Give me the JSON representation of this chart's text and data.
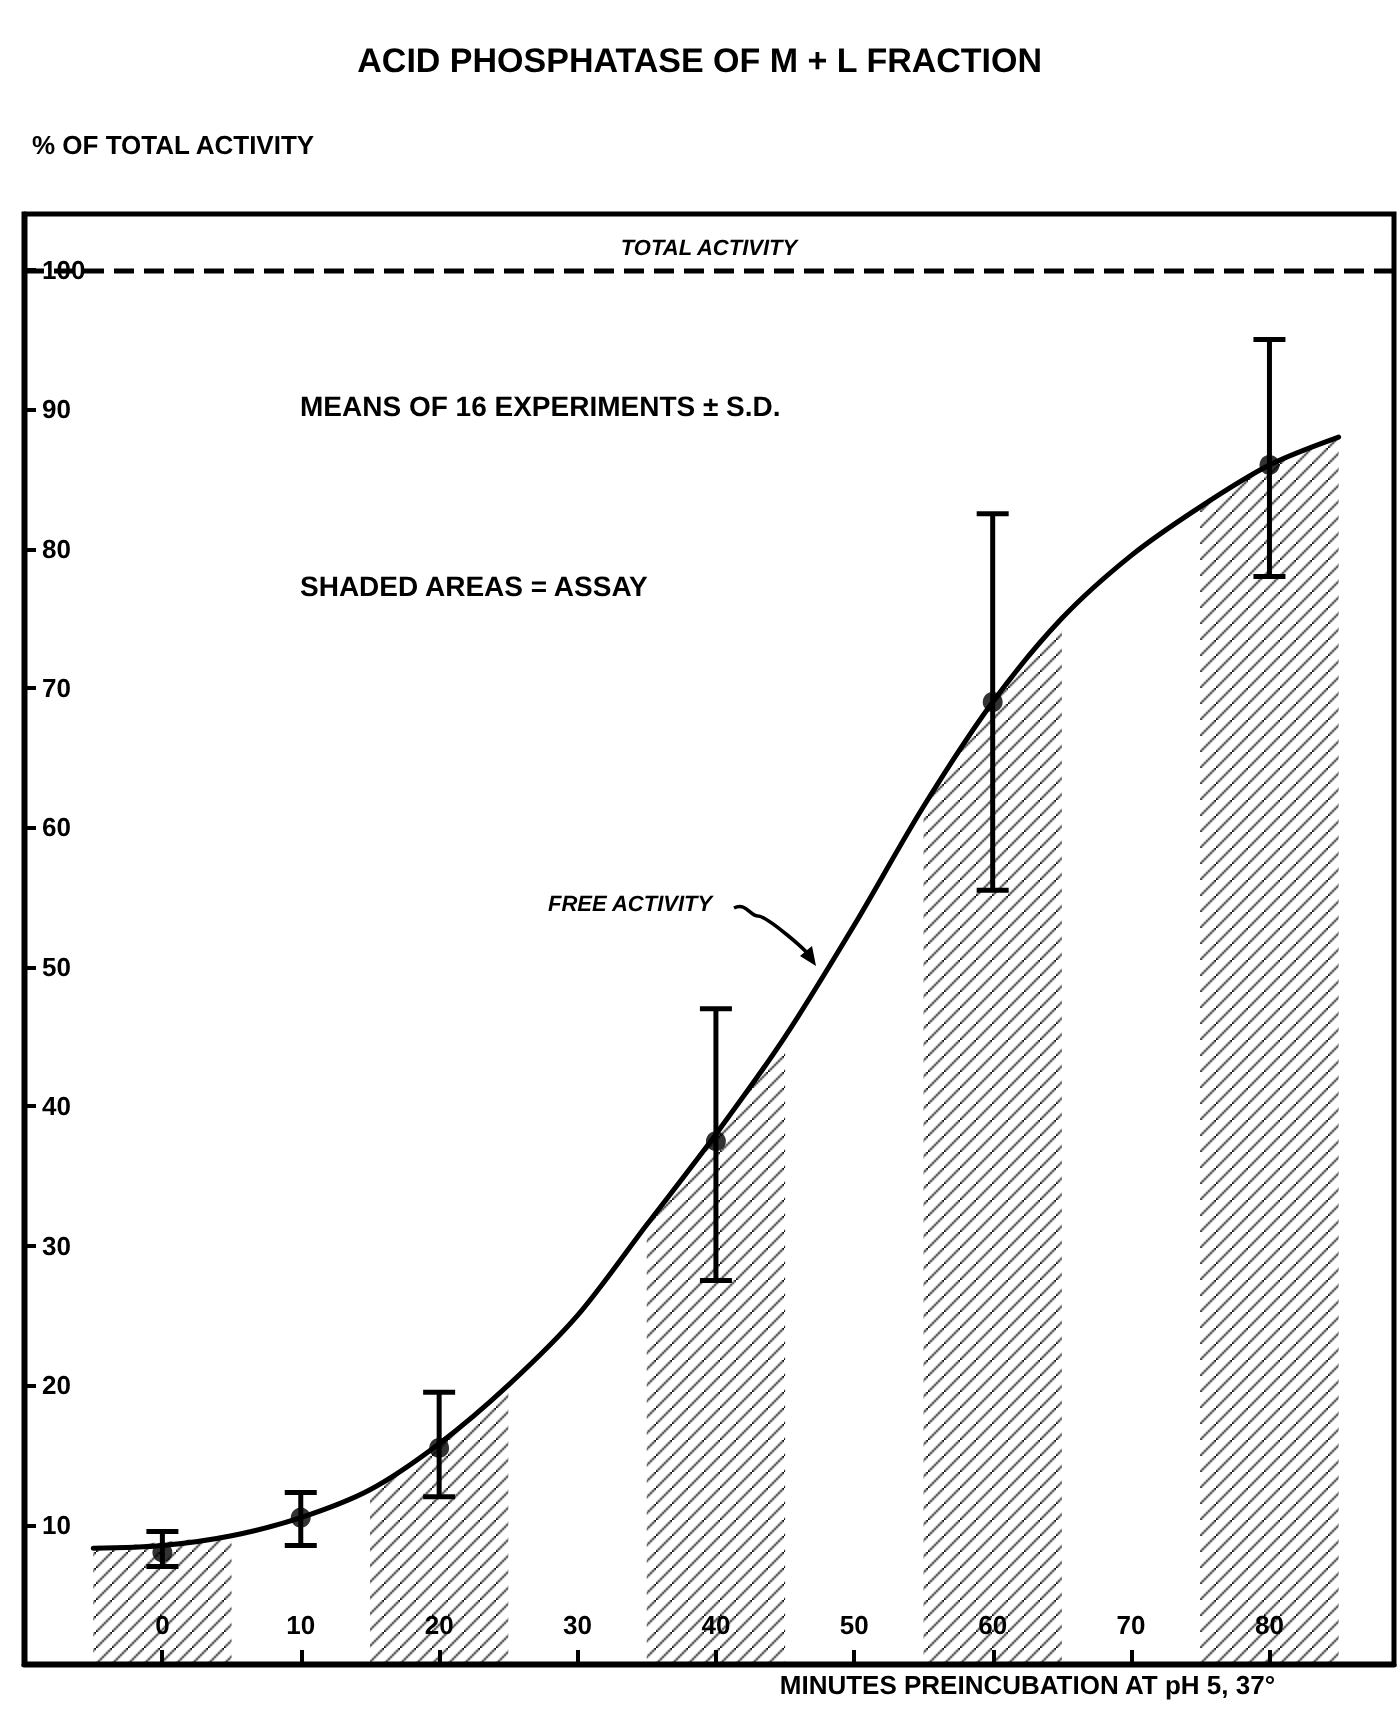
{
  "chart_data": {
    "type": "line",
    "title": "ACID PHOSPHATASE OF M + L FRACTION",
    "xlabel": "MINUTES PREINCUBATION AT pH 5, 37°",
    "ylabel": "% OF TOTAL ACTIVITY",
    "annotations": [
      "MEANS OF 16 EXPERIMENTS ± S.D.",
      "SHADED AREAS = ASSAY",
      "FREE ACTIVITY"
    ],
    "xlim": [
      -10,
      89
    ],
    "xticks": [
      0,
      10,
      20,
      30,
      40,
      50,
      60,
      70,
      80
    ],
    "ylim": [
      0,
      104
    ],
    "yticks": [
      10,
      20,
      30,
      40,
      50,
      60,
      70,
      80,
      90,
      100
    ],
    "grid": false,
    "ref_lines": [
      {
        "axis": "y",
        "value": 100,
        "label": "TOTAL ACTIVITY",
        "color": "#000000",
        "line_style": "dashed"
      }
    ],
    "series": [
      {
        "type": "area",
        "color": "#000000",
        "x": [
          -5,
          5
        ],
        "values": [
          8.3,
          9.2
        ]
      },
      {
        "type": "area",
        "color": "#000000",
        "x": [
          15,
          20,
          25
        ],
        "values": [
          12.5,
          15.8,
          20
        ]
      },
      {
        "type": "area",
        "color": "#000000",
        "x": [
          35,
          40,
          45
        ],
        "values": [
          31.5,
          38,
          45
        ]
      },
      {
        "type": "area",
        "color": "#000000",
        "x": [
          55,
          60,
          65
        ],
        "values": [
          61.5,
          69,
          75
        ]
      },
      {
        "type": "area",
        "color": "#000000",
        "x": [
          75,
          80,
          85
        ],
        "values": [
          83,
          86,
          88
        ]
      },
      {
        "type": "line",
        "color": "#000000",
        "marker": "none",
        "line_style": "solid",
        "x": [
          -5,
          0,
          5,
          10,
          15,
          20,
          25,
          30,
          35,
          40,
          45,
          50,
          55,
          60,
          65,
          70,
          75,
          80,
          85
        ],
        "values": [
          8.3,
          8.5,
          9.2,
          10.5,
          12.5,
          15.8,
          20,
          25,
          31.5,
          38,
          45,
          53,
          61.5,
          69,
          75,
          79.5,
          83,
          86,
          88
        ]
      },
      {
        "type": "scatter",
        "color": "#000000",
        "marker": "circle",
        "x": [
          0,
          10,
          20,
          40,
          60,
          80
        ],
        "values": [
          8,
          10.5,
          15.5,
          37.5,
          69,
          86
        ],
        "errors": [
          [
            7,
            9.5
          ],
          [
            8.5,
            12.3
          ],
          [
            12,
            19.5
          ],
          [
            27.5,
            47
          ],
          [
            55.5,
            82.5
          ],
          [
            78,
            95
          ]
        ]
      }
    ]
  }
}
